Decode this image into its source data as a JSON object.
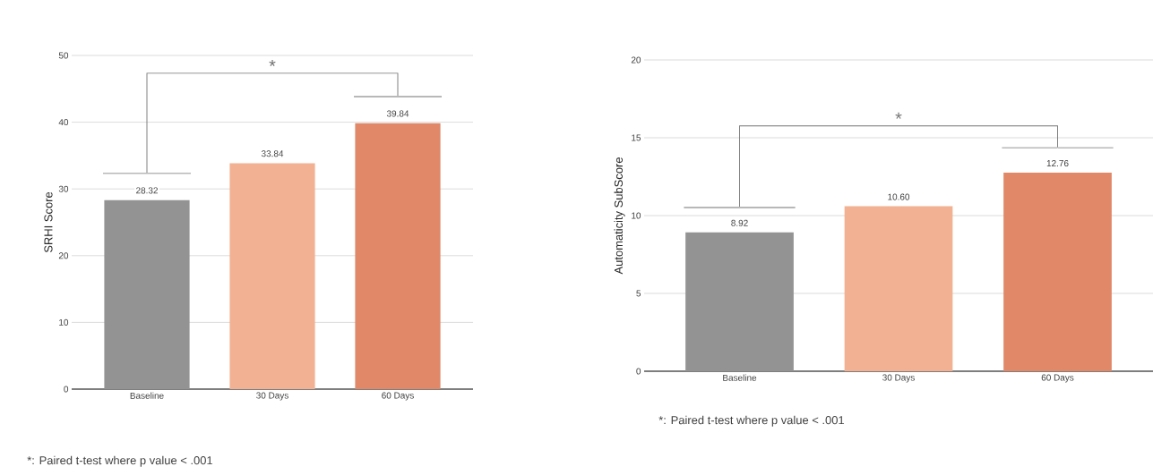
{
  "chart_data": [
    {
      "type": "bar",
      "ylabel": "SRHI Score",
      "categories": [
        "Baseline",
        "30 Days",
        "60 Days"
      ],
      "values": [
        28.32,
        33.84,
        39.84
      ],
      "colors": [
        "#939393",
        "#f2b192",
        "#e08868"
      ],
      "value_labels": [
        "28.32",
        "33.84",
        "39.84"
      ],
      "ylim": [
        0,
        50
      ],
      "yticks": [
        0,
        10,
        20,
        30,
        40,
        50
      ],
      "grid": "y",
      "annotations": [
        "*",
        "*: Paired t-test where p value < .001"
      ]
    },
    {
      "type": "bar",
      "ylabel": "Automaticity SubScore",
      "categories": [
        "Baseline",
        "30 Days",
        "60 Days"
      ],
      "values": [
        8.92,
        10.6,
        12.76
      ],
      "colors": [
        "#939393",
        "#f2b192",
        "#e08868"
      ],
      "value_labels": [
        "8.92",
        "10.60",
        "12.76"
      ],
      "ylim": [
        0,
        20
      ],
      "yticks": [
        0,
        5,
        10,
        15,
        20
      ],
      "grid": "y",
      "annotations": [
        "*",
        "*: Paired t-test where p value < .001"
      ]
    }
  ]
}
